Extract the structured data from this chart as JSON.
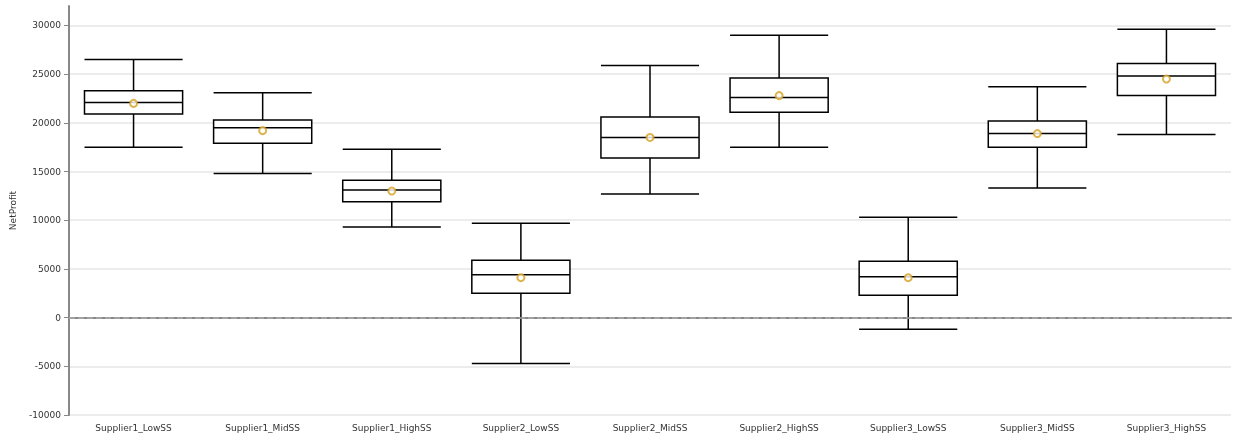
{
  "chart_data": {
    "type": "box",
    "ylabel": "NetProfit",
    "categories": [
      "Supplier1_LowSS",
      "Supplier1_MidSS",
      "Supplier1_HighSS",
      "Supplier2_LowSS",
      "Supplier2_MidSS",
      "Supplier2_HighSS",
      "Supplier3_LowSS",
      "Supplier3_MidSS",
      "Supplier3_HighSS"
    ],
    "boxes": [
      {
        "low": 17500,
        "q1": 20900,
        "median": 22100,
        "q3": 23300,
        "high": 26500,
        "mean": 22000
      },
      {
        "low": 14800,
        "q1": 17900,
        "median": 19500,
        "q3": 20300,
        "high": 23100,
        "mean": 19200
      },
      {
        "low": 9300,
        "q1": 11900,
        "median": 13100,
        "q3": 14100,
        "high": 17300,
        "mean": 13000
      },
      {
        "low": -4700,
        "q1": 2500,
        "median": 4400,
        "q3": 5900,
        "high": 9700,
        "mean": 4100
      },
      {
        "low": 12700,
        "q1": 16400,
        "median": 18500,
        "q3": 20600,
        "high": 25900,
        "mean": 18500
      },
      {
        "low": 17500,
        "q1": 21100,
        "median": 22600,
        "q3": 24600,
        "high": 29000,
        "mean": 22800
      },
      {
        "low": -1200,
        "q1": 2300,
        "median": 4200,
        "q3": 5800,
        "high": 10300,
        "mean": 4100
      },
      {
        "low": 13300,
        "q1": 17500,
        "median": 18900,
        "q3": 20200,
        "high": 23700,
        "mean": 18900
      },
      {
        "low": 18800,
        "q1": 22800,
        "median": 24800,
        "q3": 26100,
        "high": 29600,
        "mean": 24500
      }
    ],
    "color": "#000000",
    "ylim": [
      -10000,
      32000
    ],
    "yticks": [
      -10000,
      -5000,
      0,
      5000,
      10000,
      15000,
      20000,
      25000,
      30000
    ],
    "ref_lines": [
      {
        "axis": "y",
        "value": 0,
        "color": "#aaaaaa",
        "line_style": "dashed"
      }
    ],
    "grid": "y"
  }
}
